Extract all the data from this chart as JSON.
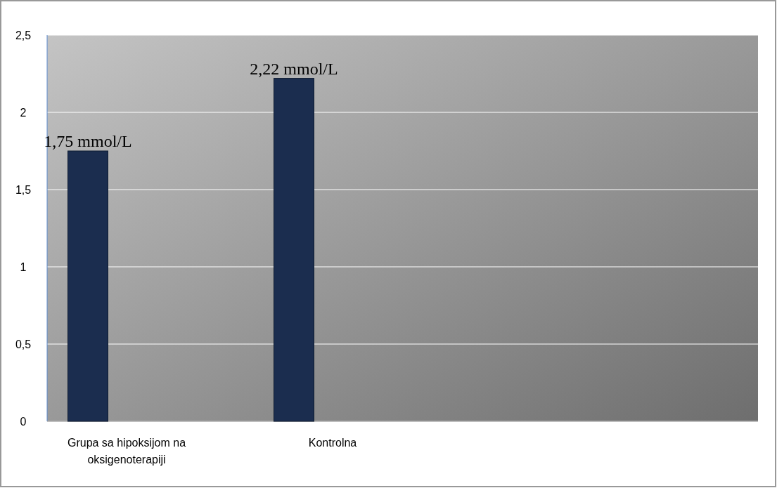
{
  "chart_data": {
    "type": "bar",
    "categories": [
      "Grupa sa hipoksijom na oksigenoterapiji",
      "Kontrolna"
    ],
    "values": [
      1.75,
      2.22
    ],
    "color": "#1b2d4f",
    "value_labels": [
      "1,75 mmol/L",
      "2,22 mmol/L"
    ],
    "ylim": [
      0,
      2.5
    ],
    "yticks": [
      0,
      {
        "value": 0.5,
        "label": "0,5"
      },
      1,
      {
        "value": 1.5,
        "label": "1,5"
      },
      2,
      {
        "value": 2.5,
        "label": "2,5"
      }
    ],
    "grid": "y"
  }
}
